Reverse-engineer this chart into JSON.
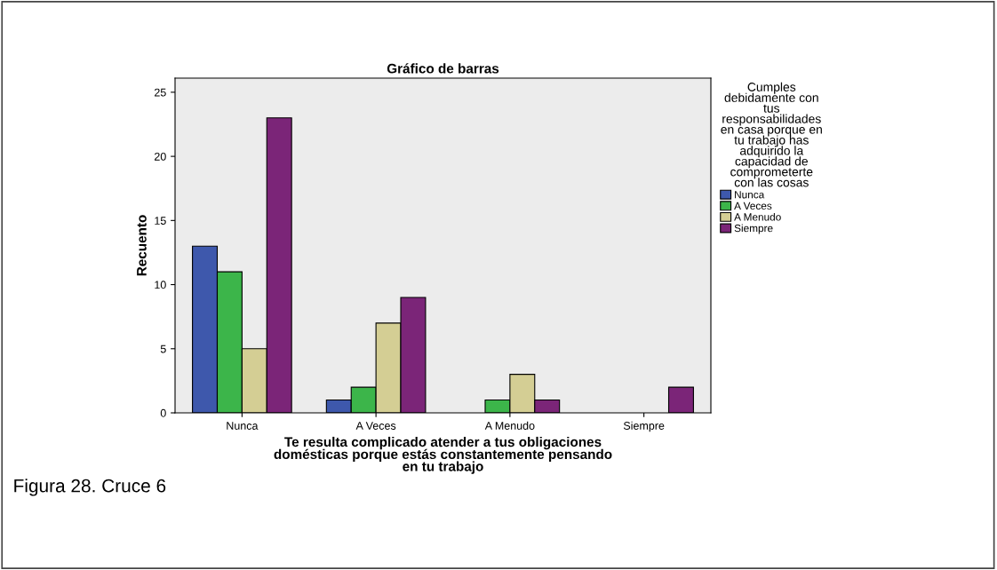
{
  "chart_data": {
    "type": "bar",
    "title": "Gráfico de barras",
    "categories": [
      "Nunca",
      "A Veces",
      "A Menudo",
      "Siempre"
    ],
    "series": [
      {
        "name": "Nunca",
        "color": "#3e58ac",
        "values": [
          13,
          1,
          null,
          null
        ]
      },
      {
        "name": "A Veces",
        "color": "#3cb54a",
        "values": [
          11,
          2,
          1,
          null
        ]
      },
      {
        "name": "A Menudo",
        "color": "#d4ce94",
        "values": [
          5,
          7,
          3,
          null
        ]
      },
      {
        "name": "Siempre",
        "color": "#7b2578",
        "values": [
          23,
          9,
          1,
          2
        ]
      }
    ],
    "xlabel": "Te resulta complicado atender a tus obligaciones\ndomésticas porque estás constantemente pensando\nen tu trabajo",
    "ylabel": "Recuento",
    "legend_title": "Cumples\ndebidamente con\ntus\nresponsabilidades\nen casa porque en\ntu trabajo has\nadquirido la\ncapacidad de\ncomprometerte\ncon las cosas",
    "ylim": [
      0,
      26.1
    ],
    "yticks": [
      0,
      5,
      10,
      15,
      20,
      25
    ],
    "grid": false,
    "legend": "right",
    "annotations": [
      "Figura 28. Cruce 6"
    ]
  }
}
